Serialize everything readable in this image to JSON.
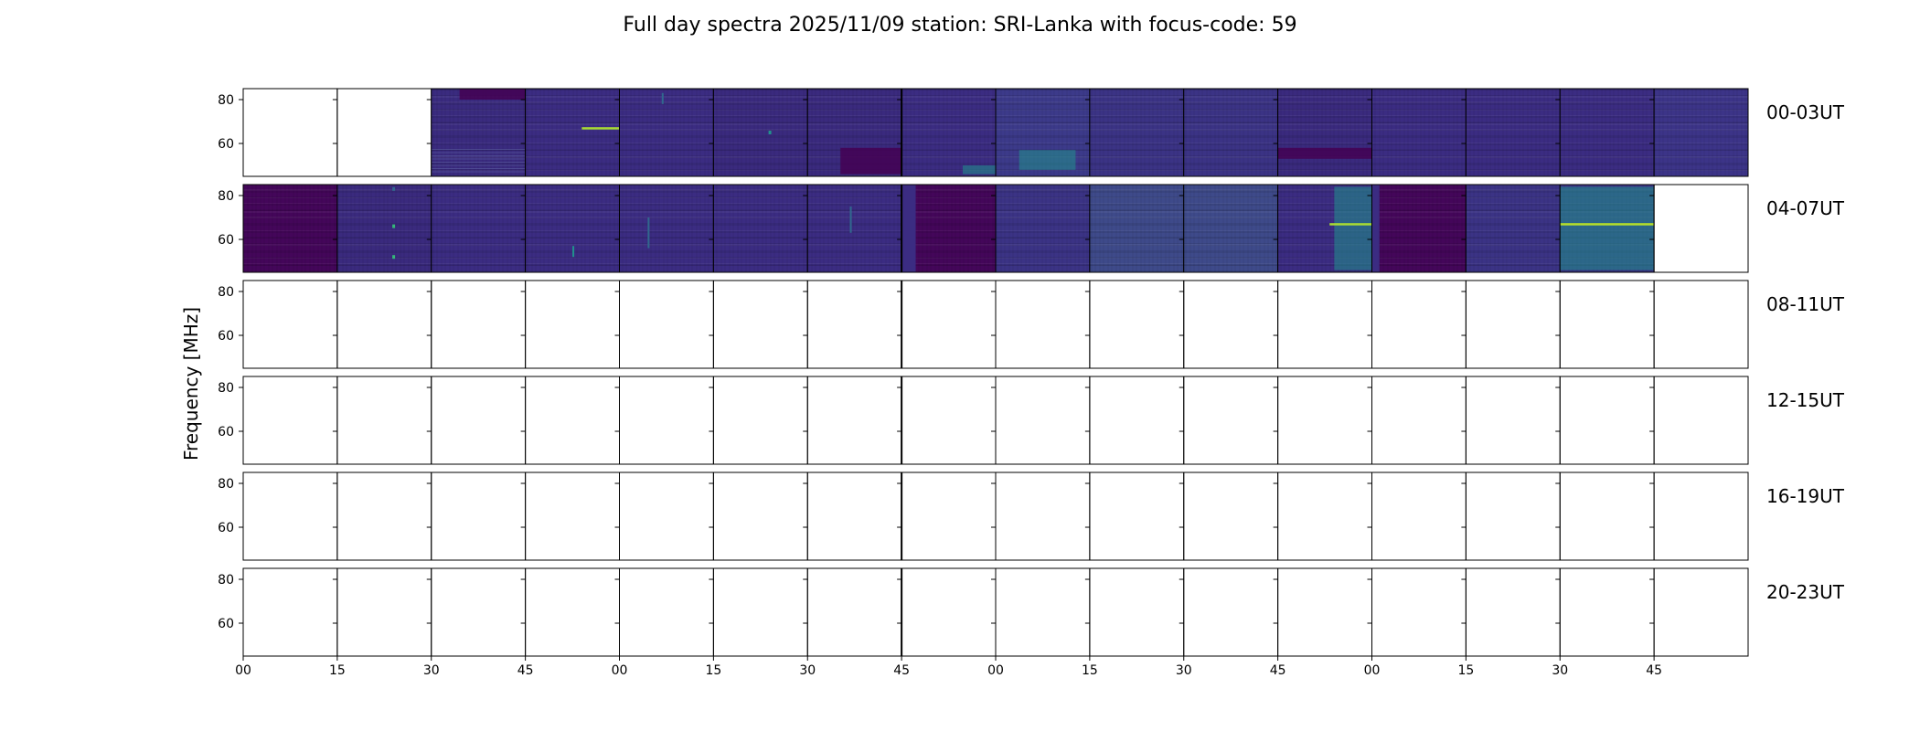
{
  "chart_data": {
    "type": "heatmap",
    "title": "Full day spectra 2025/11/09 station: SRI-Lanka with focus-code: 59",
    "ylabel": "Frequency [MHz]",
    "xlabel": "",
    "ylim": [
      45,
      85
    ],
    "y_ticks": [
      60,
      80
    ],
    "x_tick_labels": [
      "00",
      "15",
      "30",
      "45",
      "00",
      "15",
      "30",
      "45",
      "00",
      "15",
      "30",
      "45",
      "00",
      "15",
      "30",
      "45"
    ],
    "colormap": "viridis",
    "colors": {
      "dark": "#440154",
      "base": "#3b2a80",
      "mid": "#31688e",
      "teal": "#21918c",
      "green": "#35b779",
      "yellow": "#b5de2b"
    },
    "rows": [
      {
        "label": "00-03UT",
        "panels": [
          {
            "has_data": false
          },
          {
            "has_data": false
          },
          {
            "has_data": true,
            "base": "#3a2b7f",
            "features": [
              {
                "kind": "dark_block",
                "x0": 0.3,
                "x1": 1.0,
                "f0": 80,
                "f1": 85
              },
              {
                "kind": "hlines_low"
              }
            ]
          },
          {
            "has_data": true,
            "base": "#3b2c82",
            "features": [
              {
                "kind": "hline",
                "f": 67,
                "x0": 0.6,
                "x1": 1.0,
                "color": "#a8db34"
              }
            ]
          },
          {
            "has_data": true,
            "base": "#3b2c82",
            "features": [
              {
                "kind": "vline",
                "x": 0.45,
                "f0": 78,
                "f1": 83,
                "color": "#31688e"
              }
            ]
          },
          {
            "has_data": true,
            "base": "#3a2a7e",
            "features": [
              {
                "kind": "dot",
                "x": 0.6,
                "f": 65,
                "color": "#21918c"
              }
            ]
          },
          {
            "has_data": true,
            "base": "#3a2a7e",
            "features": [
              {
                "kind": "dark_block",
                "x0": 0.35,
                "x1": 1.0,
                "f0": 46,
                "f1": 58
              }
            ]
          },
          {
            "has_data": true,
            "base": "#3b2c82",
            "features": [
              {
                "kind": "teal_patch",
                "x0": 0.65,
                "x1": 1.0,
                "f0": 46,
                "f1": 50
              }
            ]
          },
          {
            "has_data": true,
            "base": "#3c3a8a",
            "features": [
              {
                "kind": "teal_patch",
                "x0": 0.25,
                "x1": 0.85,
                "f0": 48,
                "f1": 57
              }
            ]
          },
          {
            "has_data": true,
            "base": "#3b3385",
            "features": []
          },
          {
            "has_data": true,
            "base": "#3b3385",
            "features": []
          },
          {
            "has_data": true,
            "base": "#3a2a7e",
            "features": [
              {
                "kind": "dark_block",
                "x0": 0.0,
                "x1": 1.0,
                "f0": 53,
                "f1": 58
              }
            ]
          },
          {
            "has_data": true,
            "base": "#3b2c82",
            "features": []
          },
          {
            "has_data": true,
            "base": "#3b2c82",
            "features": []
          },
          {
            "has_data": true,
            "base": "#3b2c82",
            "features": []
          },
          {
            "has_data": true,
            "base": "#3c3488",
            "features": []
          }
        ]
      },
      {
        "label": "04-07UT",
        "panels": [
          {
            "has_data": true,
            "base": "#44065a",
            "features": []
          },
          {
            "has_data": true,
            "base": "#3a2a7e",
            "features": [
              {
                "kind": "dot",
                "x": 0.6,
                "f": 66,
                "color": "#35b779"
              },
              {
                "kind": "dot",
                "x": 0.6,
                "f": 52,
                "color": "#35b779"
              },
              {
                "kind": "dot",
                "x": 0.6,
                "f": 83,
                "color": "#31688e"
              }
            ]
          },
          {
            "has_data": true,
            "base": "#3b2c82",
            "features": []
          },
          {
            "has_data": true,
            "base": "#3b2c82",
            "features": [
              {
                "kind": "vline",
                "x": 0.5,
                "f0": 52,
                "f1": 57,
                "color": "#21918c"
              }
            ]
          },
          {
            "has_data": true,
            "base": "#3b2c82",
            "features": [
              {
                "kind": "vline",
                "x": 0.3,
                "f0": 56,
                "f1": 70,
                "color": "#31688e"
              }
            ]
          },
          {
            "has_data": true,
            "base": "#3b2c82",
            "features": []
          },
          {
            "has_data": true,
            "base": "#3b2c82",
            "features": [
              {
                "kind": "vline",
                "x": 0.45,
                "f0": 63,
                "f1": 75,
                "color": "#31688e"
              }
            ]
          },
          {
            "has_data": true,
            "base": "#44065a",
            "features": [
              {
                "kind": "stripe",
                "x0": 0.0,
                "x1": 0.15,
                "color": "#3b2c82"
              }
            ]
          },
          {
            "has_data": true,
            "base": "#3b3385",
            "features": []
          },
          {
            "has_data": true,
            "base": "#3e4a8a",
            "features": []
          },
          {
            "has_data": true,
            "base": "#3e4a8a",
            "features": []
          },
          {
            "has_data": true,
            "base": "#3b2c82",
            "features": [
              {
                "kind": "teal_patch",
                "x0": 0.6,
                "x1": 1.0,
                "f0": 46,
                "f1": 84
              },
              {
                "kind": "hline",
                "f": 67,
                "x0": 0.55,
                "x1": 1.0,
                "color": "#a8db34"
              }
            ]
          },
          {
            "has_data": true,
            "base": "#44065a",
            "features": [
              {
                "kind": "stripe",
                "x0": 0.0,
                "x1": 0.08,
                "color": "#3b2c82"
              }
            ]
          },
          {
            "has_data": true,
            "base": "#3b3385",
            "features": []
          },
          {
            "has_data": true,
            "base": "#3b3385",
            "features": [
              {
                "kind": "teal_patch",
                "x0": 0.0,
                "x1": 1.0,
                "f0": 46,
                "f1": 84
              },
              {
                "kind": "hline",
                "f": 67,
                "x0": 0.0,
                "x1": 1.0,
                "color": "#b5de2b"
              }
            ]
          },
          {
            "has_data": false
          }
        ]
      },
      {
        "label": "08-11UT",
        "panels": []
      },
      {
        "label": "12-15UT",
        "panels": []
      },
      {
        "label": "16-19UT",
        "panels": []
      },
      {
        "label": "20-23UT",
        "panels": []
      }
    ]
  }
}
